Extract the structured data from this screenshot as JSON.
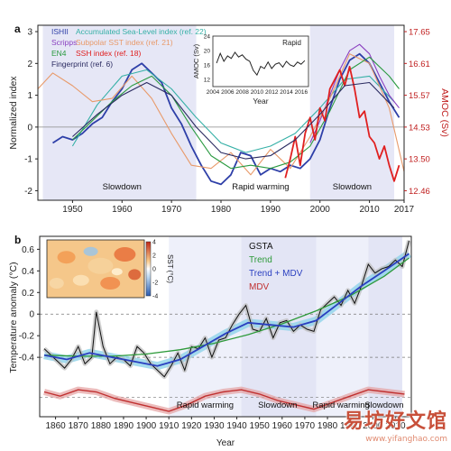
{
  "chart_data": [
    {
      "panel": "a",
      "type": "line",
      "ylabel": "Normalized index",
      "ylabel_right": "AMOC (Sv)",
      "xlim": [
        1943,
        2017
      ],
      "ylim": [
        -2.3,
        3.2
      ],
      "xticks": [
        1950,
        1960,
        1970,
        1980,
        1990,
        2000,
        2010,
        2017
      ],
      "yticks": [
        -2,
        -1,
        0,
        1,
        2,
        3
      ],
      "yticks_right": [
        "12.46",
        "13.50",
        "14.53",
        "15.57",
        "16.61",
        "17.65"
      ],
      "legend": [
        {
          "label": "ISHII",
          "color": "#2e3fa8"
        },
        {
          "label": "Accumulated Sea-Level index (ref. 22)",
          "color": "#35b0a6"
        },
        {
          "label": "Scripps",
          "color": "#8a3fc0"
        },
        {
          "label": "Subpolar SST index (ref. 21)",
          "color": "#e89a6a"
        },
        {
          "label": "EN4",
          "color": "#2a9a40"
        },
        {
          "label": "SSH index (ref. 18)",
          "color": "#e02020"
        },
        {
          "label": "Fingerprint (ref. 6)",
          "color": "#2a2a60"
        }
      ],
      "shaded_periods": [
        {
          "label": "Slowdown",
          "start": 1944,
          "end": 1975
        },
        {
          "label": "Rapid warming",
          "start": 1975,
          "end": 1998
        },
        {
          "label": "Slowdown",
          "start": 1998,
          "end": 2015
        }
      ],
      "series": [
        {
          "name": "ISHII",
          "color": "#2e3fa8",
          "x": [
            1946,
            1948,
            1950,
            1952,
            1954,
            1956,
            1958,
            1960,
            1962,
            1964,
            1966,
            1968,
            1970,
            1972,
            1974,
            1976,
            1978,
            1980,
            1982,
            1984,
            1986,
            1988,
            1990,
            1992,
            1994,
            1996,
            1998,
            2000,
            2002,
            2004,
            2006,
            2008,
            2010,
            2012,
            2014,
            2016
          ],
          "y": [
            -0.5,
            -0.3,
            -0.4,
            -0.2,
            0.1,
            0.3,
            0.8,
            1.2,
            1.8,
            2.0,
            1.7,
            1.4,
            0.6,
            0.1,
            -0.6,
            -1.2,
            -1.7,
            -1.8,
            -1.5,
            -0.8,
            -0.9,
            -1.5,
            -1.3,
            -1.4,
            -1.2,
            -1.3,
            -1.0,
            -0.4,
            0.6,
            1.5,
            2.1,
            2.3,
            2.0,
            1.4,
            0.8,
            0.3
          ]
        },
        {
          "name": "Accumulated Sea-Level index (ref. 22)",
          "color": "#35b0a6",
          "x": [
            1950,
            1955,
            1960,
            1965,
            1970,
            1975,
            1980,
            1985,
            1990,
            1995,
            2000,
            2005,
            2010,
            2015
          ],
          "y": [
            -0.6,
            0.7,
            1.6,
            1.8,
            1.2,
            0.3,
            -0.5,
            -0.8,
            -0.6,
            -0.2,
            0.6,
            1.5,
            1.6,
            0.8
          ]
        },
        {
          "name": "Scripps",
          "color": "#8a3fc0",
          "x": [
            1998,
            2000,
            2002,
            2004,
            2006,
            2008,
            2010,
            2012,
            2014,
            2016
          ],
          "y": [
            -0.5,
            0.2,
            1.0,
            1.8,
            2.4,
            2.6,
            2.3,
            1.6,
            1.0,
            0.6
          ]
        },
        {
          "name": "Subpolar SST index (ref. 21)",
          "color": "#e89a6a",
          "x": [
            1943,
            1946,
            1950,
            1954,
            1958,
            1962,
            1966,
            1970,
            1974,
            1978,
            1982,
            1986,
            1990,
            1994,
            1998,
            2002,
            2006,
            2010,
            2014,
            2017
          ],
          "y": [
            1.2,
            1.7,
            1.3,
            0.8,
            0.9,
            1.6,
            0.9,
            -0.2,
            -1.2,
            -1.3,
            -0.8,
            -1.5,
            -0.7,
            -1.3,
            -0.3,
            0.9,
            2.3,
            2.0,
            0.6,
            -1.4
          ]
        },
        {
          "name": "EN4",
          "color": "#2a9a40",
          "x": [
            1950,
            1954,
            1958,
            1962,
            1966,
            1970,
            1974,
            1978,
            1982,
            1986,
            1990,
            1994,
            1998,
            2002,
            2006,
            2010,
            2014,
            2016
          ],
          "y": [
            -0.4,
            0.2,
            0.8,
            1.3,
            1.6,
            1.0,
            0.0,
            -0.9,
            -1.3,
            -1.2,
            -1.3,
            -1.1,
            -0.6,
            0.5,
            1.8,
            2.2,
            1.6,
            1.2
          ]
        },
        {
          "name": "SSH index (ref. 18)",
          "color": "#e02020",
          "x": [
            1993,
            1994,
            1995,
            1996,
            1997,
            1998,
            1999,
            2000,
            2001,
            2002,
            2003,
            2004,
            2005,
            2006,
            2007,
            2008,
            2009,
            2010,
            2011,
            2012,
            2013,
            2014,
            2015,
            2016
          ],
          "y": [
            -1.6,
            -1.0,
            -0.3,
            -1.2,
            -0.2,
            0.3,
            -0.4,
            0.6,
            0.2,
            1.2,
            1.5,
            1.8,
            1.3,
            1.9,
            1.2,
            0.3,
            0.5,
            -0.3,
            -0.5,
            -1.0,
            -0.6,
            -1.2,
            -1.7,
            -1.2
          ]
        },
        {
          "name": "Fingerprint (ref. 6)",
          "color": "#2a2a60",
          "x": [
            1950,
            1955,
            1960,
            1965,
            1970,
            1975,
            1980,
            1985,
            1990,
            1995,
            2000,
            2005,
            2010,
            2015
          ],
          "y": [
            -0.3,
            0.4,
            1.0,
            1.4,
            1.0,
            0.0,
            -0.8,
            -1.0,
            -0.9,
            -0.4,
            0.4,
            1.3,
            1.4,
            0.6
          ]
        }
      ],
      "inset": {
        "type": "line",
        "title": "Rapid",
        "xlabel": "Year",
        "ylabel": "AMOC (Sv)",
        "xlim": [
          2004,
          2017
        ],
        "ylim": [
          10,
          24
        ],
        "xticks": [
          2004,
          2006,
          2008,
          2010,
          2012,
          2014,
          2016
        ],
        "yticks": [
          12,
          16,
          20,
          24
        ],
        "x": [
          2004.5,
          2005,
          2005.5,
          2006,
          2006.5,
          2007,
          2007.5,
          2008,
          2008.5,
          2009,
          2009.5,
          2010,
          2010.5,
          2011,
          2011.5,
          2012,
          2012.5,
          2013,
          2013.5,
          2014,
          2014.5,
          2015,
          2015.5,
          2016,
          2016.5
        ],
        "y": [
          16.5,
          19.2,
          17.0,
          18.5,
          17.8,
          19.5,
          18.2,
          18.8,
          17.6,
          17.0,
          14.5,
          13.2,
          15.6,
          15.0,
          16.8,
          15.0,
          16.2,
          16.6,
          15.4,
          17.0,
          16.0,
          15.6,
          16.8,
          16.2,
          17.2
        ]
      }
    },
    {
      "panel": "b",
      "type": "line",
      "ylabel": "Temperature anomaly (°C)",
      "xlabel": "Year",
      "xlim": [
        1853,
        2017
      ],
      "ylim": [
        -0.95,
        0.72
      ],
      "xticks": [
        1860,
        1870,
        1880,
        1890,
        1900,
        1910,
        1920,
        1930,
        1940,
        1950,
        1960,
        1970,
        1980,
        1990,
        2000,
        2010
      ],
      "yticks": [
        -0.4,
        -0.2,
        0,
        0.2,
        0.4,
        0.6
      ],
      "legend": [
        {
          "label": "GSTA",
          "color": "#111111"
        },
        {
          "label": "Trend",
          "color": "#2e9a3a"
        },
        {
          "label": "Trend + MDV",
          "color": "#2a3fc0"
        },
        {
          "label": "MDV",
          "color": "#c03030"
        }
      ],
      "shaded_periods": [
        {
          "label": "Rapid warming",
          "start": 1910,
          "end": 1942
        },
        {
          "label": "Slowdown",
          "start": 1942,
          "end": 1975
        },
        {
          "label": "Rapid warming",
          "start": 1975,
          "end": 1998
        },
        {
          "label": "Slowdown",
          "start": 1998,
          "end": 2013
        }
      ],
      "series": [
        {
          "name": "GSTA",
          "color": "#111111",
          "x": [
            1855,
            1858,
            1861,
            1864,
            1867,
            1870,
            1873,
            1876,
            1878,
            1881,
            1884,
            1887,
            1890,
            1893,
            1896,
            1899,
            1902,
            1905,
            1908,
            1911,
            1914,
            1917,
            1920,
            1923,
            1926,
            1929,
            1932,
            1935,
            1938,
            1941,
            1944,
            1947,
            1950,
            1953,
            1956,
            1959,
            1962,
            1965,
            1968,
            1971,
            1974,
            1977,
            1980,
            1983,
            1986,
            1989,
            1992,
            1995,
            1998,
            2001,
            2004,
            2007,
            2010,
            2013,
            2016
          ],
          "y": [
            -0.32,
            -0.38,
            -0.44,
            -0.5,
            -0.42,
            -0.3,
            -0.46,
            -0.4,
            0.02,
            -0.3,
            -0.46,
            -0.4,
            -0.42,
            -0.48,
            -0.3,
            -0.36,
            -0.46,
            -0.52,
            -0.58,
            -0.48,
            -0.36,
            -0.52,
            -0.3,
            -0.32,
            -0.22,
            -0.4,
            -0.24,
            -0.22,
            -0.1,
            0.0,
            0.08,
            -0.14,
            -0.16,
            -0.04,
            -0.22,
            -0.08,
            -0.06,
            -0.16,
            -0.1,
            -0.14,
            -0.16,
            0.04,
            0.1,
            0.16,
            0.08,
            0.22,
            0.1,
            0.26,
            0.46,
            0.38,
            0.42,
            0.44,
            0.5,
            0.44,
            0.68
          ]
        },
        {
          "name": "Trend",
          "color": "#2e9a3a",
          "x": [
            1855,
            1870,
            1885,
            1900,
            1915,
            1930,
            1945,
            1960,
            1975,
            1990,
            2005,
            2016
          ],
          "y": [
            -0.38,
            -0.39,
            -0.39,
            -0.37,
            -0.33,
            -0.27,
            -0.19,
            -0.09,
            0.03,
            0.17,
            0.35,
            0.52
          ]
        },
        {
          "name": "Trend + MDV",
          "color": "#2a3fc0",
          "x": [
            1855,
            1865,
            1875,
            1885,
            1895,
            1905,
            1915,
            1925,
            1935,
            1945,
            1955,
            1965,
            1975,
            1985,
            1995,
            2005,
            2016
          ],
          "y": [
            -0.38,
            -0.42,
            -0.36,
            -0.4,
            -0.44,
            -0.48,
            -0.42,
            -0.3,
            -0.18,
            -0.08,
            -0.1,
            -0.12,
            -0.06,
            0.1,
            0.26,
            0.4,
            0.56
          ]
        },
        {
          "name": "MDV",
          "color": "#c03030",
          "x": [
            1855,
            1862,
            1870,
            1878,
            1886,
            1894,
            1902,
            1910,
            1918,
            1926,
            1934,
            1942,
            1950,
            1958,
            1966,
            1974,
            1982,
            1990,
            1998,
            2006,
            2014
          ],
          "y": [
            -0.72,
            -0.76,
            -0.7,
            -0.72,
            -0.78,
            -0.82,
            -0.86,
            -0.9,
            -0.84,
            -0.76,
            -0.72,
            -0.7,
            -0.74,
            -0.8,
            -0.84,
            -0.88,
            -0.82,
            -0.76,
            -0.7,
            -0.72,
            -0.74
          ]
        }
      ],
      "inset": {
        "type": "heatmap",
        "colorbar_label": "SST (°C)",
        "colorbar_ticks": [
          -4,
          -2,
          0,
          2,
          4
        ]
      }
    }
  ],
  "panel_labels": {
    "a": "a",
    "b": "b"
  },
  "watermark": {
    "main": "易坊好文馆",
    "sub": "www.yifanghao.com"
  }
}
